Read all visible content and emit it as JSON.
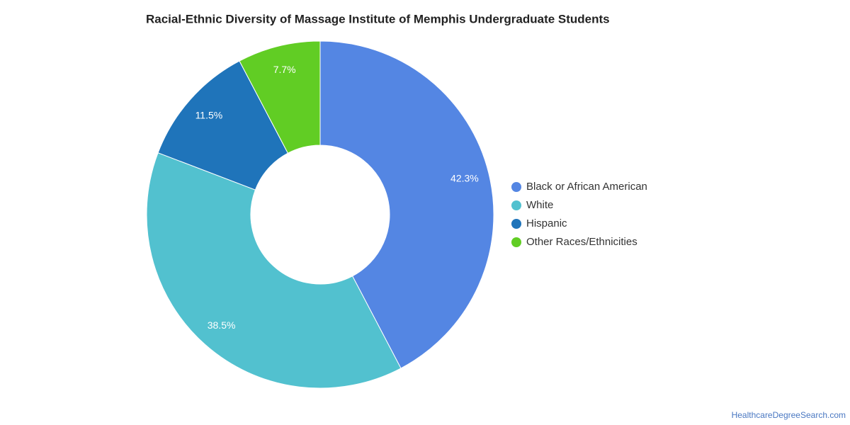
{
  "chart_data": {
    "type": "donut",
    "title": "Racial-Ethnic Diversity of Massage Institute of Memphis Undergraduate Students",
    "categories": [
      "Black or African American",
      "White",
      "Hispanic",
      "Other Races/Ethnicities"
    ],
    "values": [
      42.3,
      38.5,
      11.5,
      7.7
    ],
    "value_labels": [
      "42.3%",
      "38.5%",
      "11.5%",
      "7.7%"
    ],
    "colors": [
      "#5486e3",
      "#52c1cf",
      "#1f74ba",
      "#61cd24"
    ],
    "legend": "right"
  },
  "credit": "HealthcareDegreeSearch.com"
}
